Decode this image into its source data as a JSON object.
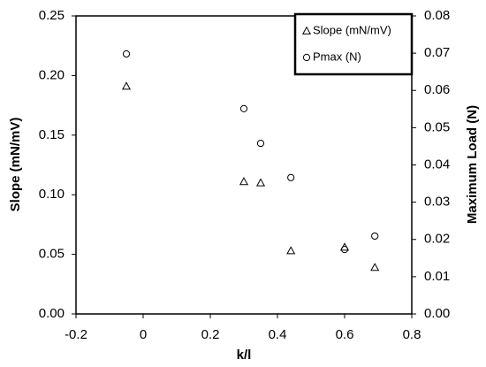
{
  "chart_data": {
    "type": "scatter",
    "x_label": "k/l",
    "y_label": "Slope (mN/mV)",
    "y2_label": "Maximum Load (N)",
    "x": [
      -0.05,
      0.3,
      0.35,
      0.44,
      0.6,
      0.69
    ],
    "series": [
      {
        "name": "Slope (mN/mV)",
        "color": "#000000",
        "marker": "triangle",
        "values": [
          0.191,
          0.111,
          0.11,
          0.053,
          0.056,
          0.039
        ]
      },
      {
        "name": "Pmax (N)",
        "color": "#000000",
        "marker": "circle",
        "axis": "y2",
        "values": [
          0.0698,
          0.0551,
          0.0458,
          0.0366,
          0.0173,
          0.0209
        ]
      }
    ],
    "xlim": [
      -0.2,
      0.8
    ],
    "xticks": [
      -0.2,
      0,
      0.2,
      0.4,
      0.6,
      0.8
    ],
    "ylim": [
      0,
      0.25
    ],
    "yticks": [
      {
        "value": 0,
        "label": "0.00"
      },
      {
        "value": 0.05,
        "label": "0.05"
      },
      {
        "value": 0.1,
        "label": "0.10"
      },
      {
        "value": 0.15,
        "label": "0.15"
      },
      {
        "value": 0.2,
        "label": "0.20"
      },
      {
        "value": 0.25,
        "label": "0.25"
      }
    ],
    "y2lim": [
      0,
      0.08
    ],
    "y2ticks": [
      {
        "value": 0,
        "label": "0.00"
      },
      {
        "value": 0.01,
        "label": "0.01"
      },
      {
        "value": 0.02,
        "label": "0.02"
      },
      {
        "value": 0.03,
        "label": "0.03"
      },
      {
        "value": 0.04,
        "label": "0.04"
      },
      {
        "value": 0.05,
        "label": "0.05"
      },
      {
        "value": 0.06,
        "label": "0.06"
      },
      {
        "value": 0.07,
        "label": "0.07"
      },
      {
        "value": 0.08,
        "label": "0.08"
      }
    ],
    "grid": false,
    "legend": "top-right"
  }
}
